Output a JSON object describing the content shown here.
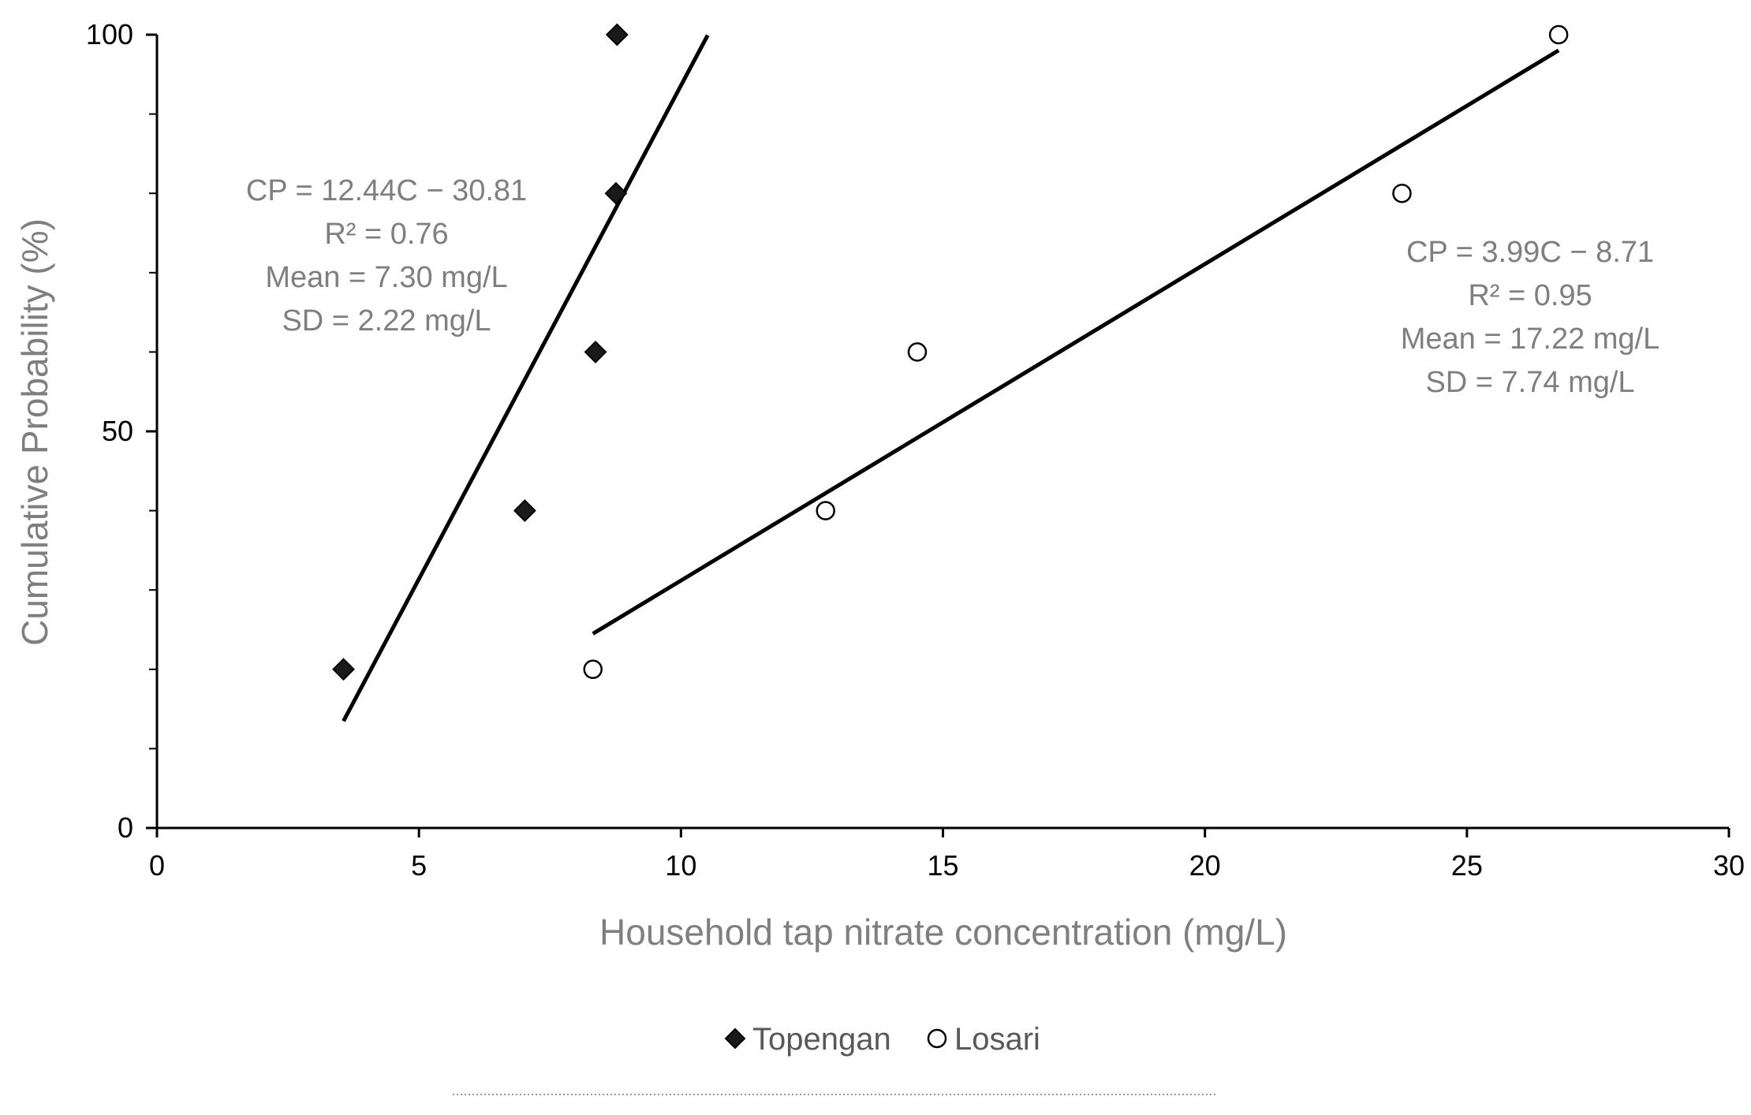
{
  "chart_data": {
    "type": "scatter",
    "title": "",
    "xlabel": "Household tap nitrate concentration (mg/L)",
    "ylabel": "Cumulative Probability (%)",
    "xlim": [
      0,
      30
    ],
    "ylim": [
      0,
      100
    ],
    "x_ticks": [
      0,
      5,
      10,
      15,
      20,
      25,
      30
    ],
    "y_ticks": [
      0,
      50,
      100
    ],
    "y_minor_ticks": [
      10,
      20,
      30,
      40,
      60,
      70,
      80,
      90
    ],
    "grid": false,
    "legend_position": "bottom",
    "series": [
      {
        "name": "Topengan",
        "marker": "diamond",
        "color": "#000000",
        "points": [
          {
            "x": 3.56,
            "y": 20
          },
          {
            "x": 7.02,
            "y": 40
          },
          {
            "x": 8.37,
            "y": 60
          },
          {
            "x": 8.76,
            "y": 80
          },
          {
            "x": 8.78,
            "y": 100
          }
        ],
        "trendline": {
          "slope": 12.44,
          "intercept": -30.81,
          "x_range": [
            3.56,
            10.51
          ]
        },
        "annotation": [
          "CP = 12.44C − 30.81",
          "R² = 0.76",
          "Mean = 7.30 mg/L",
          "SD = 2.22 mg/L"
        ]
      },
      {
        "name": "Losari",
        "marker": "circle-open",
        "color": "#000000",
        "points": [
          {
            "x": 8.32,
            "y": 20
          },
          {
            "x": 12.76,
            "y": 40
          },
          {
            "x": 14.51,
            "y": 60
          },
          {
            "x": 23.76,
            "y": 80
          },
          {
            "x": 26.75,
            "y": 100
          }
        ],
        "trendline": {
          "slope": 3.99,
          "intercept": -8.71,
          "x_range": [
            8.32,
            26.75
          ]
        },
        "annotation": [
          "CP = 3.99C − 8.71",
          "R² = 0.95",
          "Mean = 17.22 mg/L",
          "SD = 7.74 mg/L"
        ]
      }
    ]
  }
}
